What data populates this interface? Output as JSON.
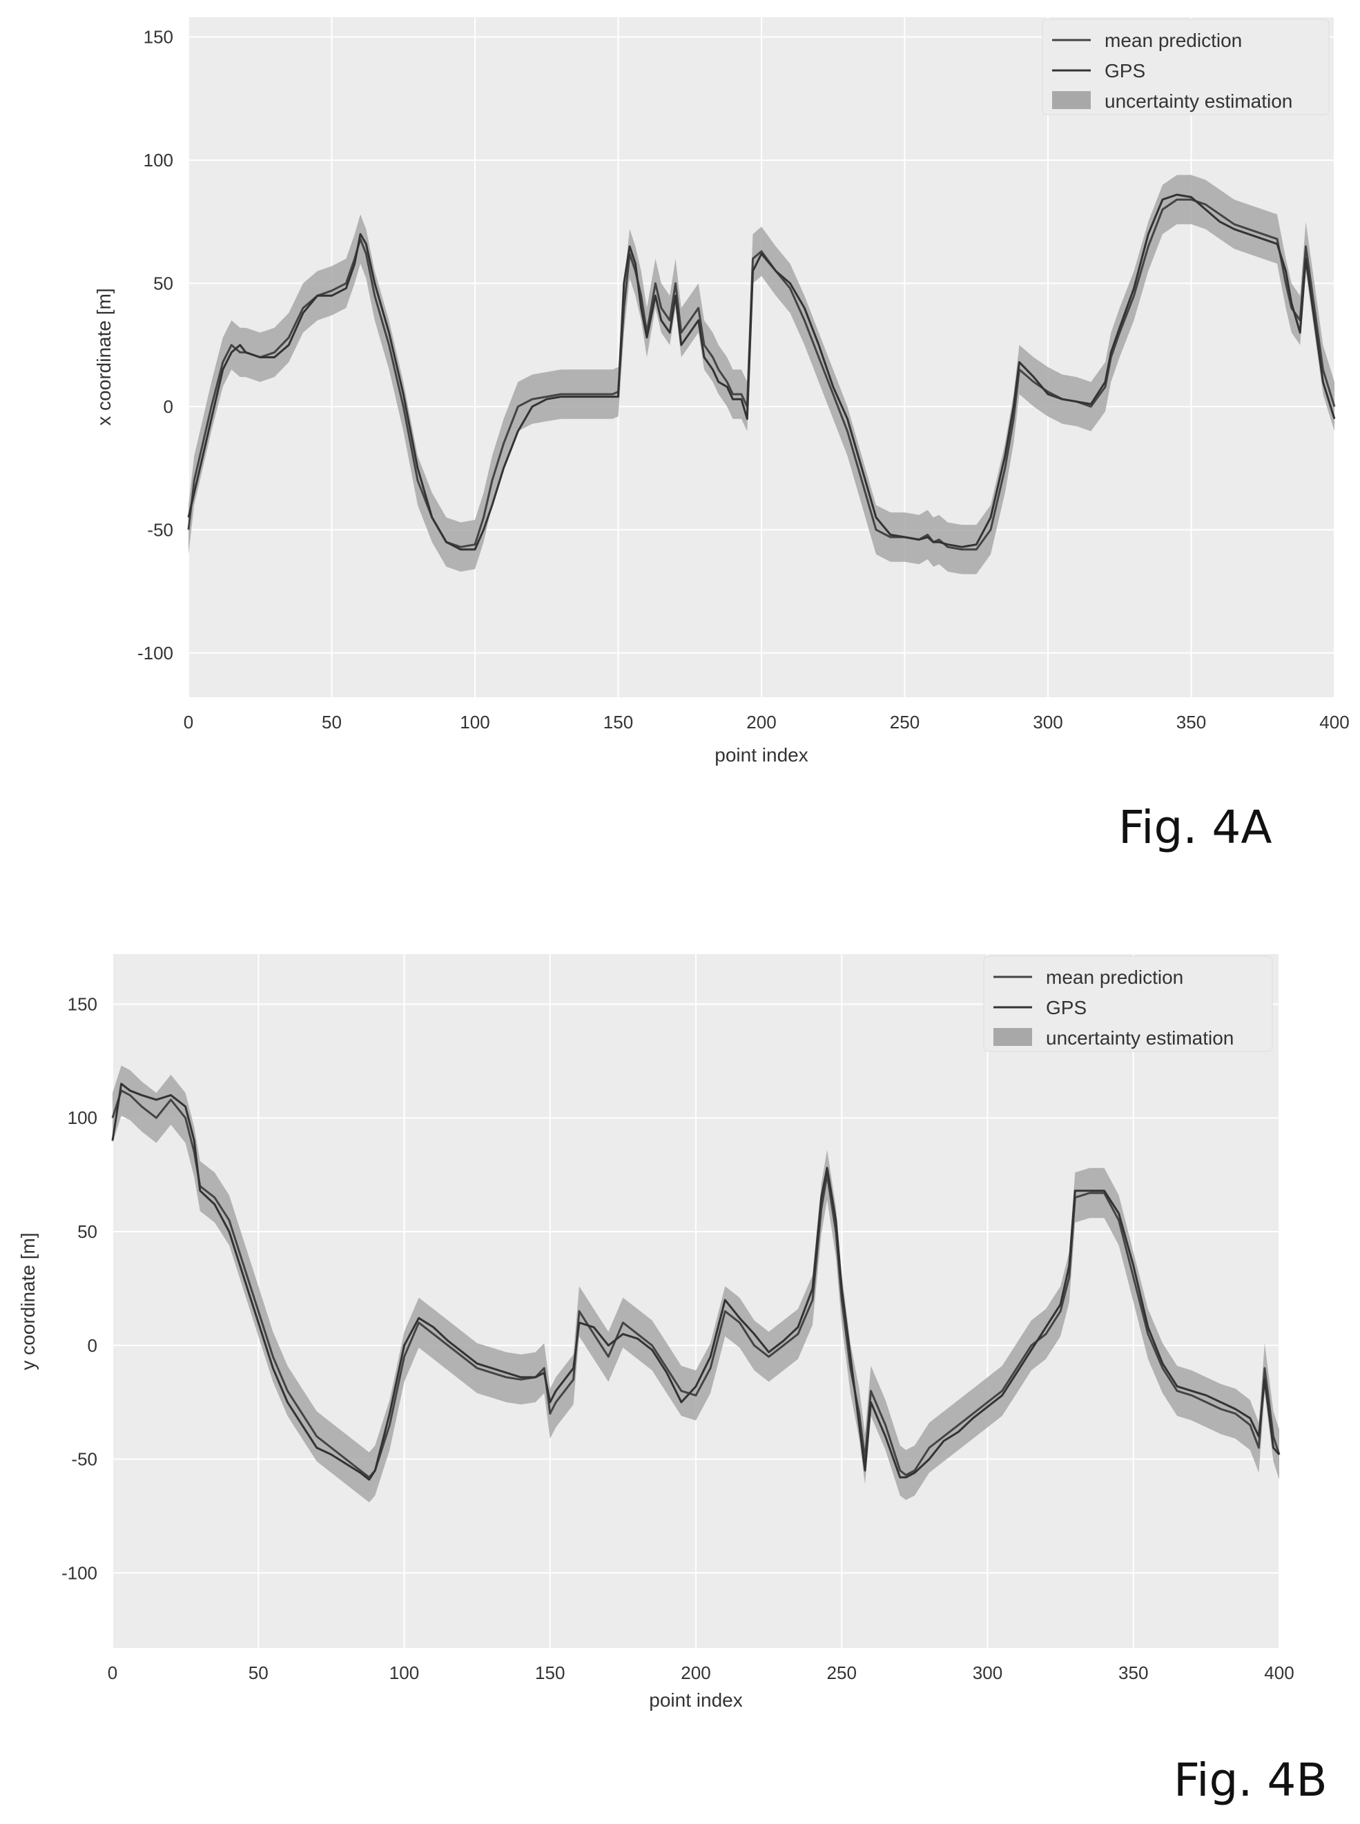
{
  "figures": [
    {
      "caption": "Fig. 4A",
      "chart_data": {
        "type": "line",
        "title": "",
        "xlabel": "point index",
        "ylabel": "x coordinate [m]",
        "xlim": [
          0,
          400
        ],
        "ylim": [
          -118,
          158
        ],
        "xticks": [
          0,
          50,
          100,
          150,
          200,
          250,
          300,
          350,
          400
        ],
        "yticks": [
          -100,
          -50,
          0,
          50,
          100,
          150
        ],
        "grid": true,
        "legend_position": "top-right",
        "legend": [
          "mean prediction",
          "GPS",
          "uncertainty estimation"
        ],
        "x": [
          0,
          2,
          5,
          8,
          12,
          15,
          18,
          20,
          25,
          30,
          35,
          40,
          45,
          50,
          55,
          58,
          60,
          62,
          65,
          70,
          75,
          80,
          85,
          90,
          95,
          100,
          103,
          106,
          110,
          115,
          120,
          125,
          130,
          135,
          140,
          145,
          148,
          150,
          152,
          154,
          156,
          158,
          160,
          163,
          165,
          168,
          170,
          172,
          175,
          178,
          180,
          183,
          185,
          188,
          190,
          193,
          195,
          197,
          200,
          205,
          210,
          215,
          220,
          225,
          230,
          235,
          240,
          245,
          250,
          255,
          258,
          260,
          262,
          265,
          270,
          275,
          280,
          285,
          288,
          290,
          295,
          300,
          305,
          310,
          315,
          320,
          322,
          325,
          330,
          335,
          340,
          345,
          350,
          355,
          360,
          365,
          370,
          375,
          380,
          383,
          385,
          388,
          390,
          393,
          396,
          400
        ],
        "series": [
          {
            "name": "mean prediction",
            "values": [
              -50,
              -30,
              -15,
              0,
              18,
              25,
              22,
              22,
              20,
              22,
              28,
              40,
              45,
              47,
              50,
              60,
              68,
              62,
              45,
              25,
              0,
              -30,
              -45,
              -55,
              -57,
              -56,
              -45,
              -30,
              -15,
              0,
              3,
              4,
              5,
              5,
              5,
              5,
              5,
              6,
              40,
              62,
              55,
              45,
              30,
              50,
              40,
              35,
              50,
              30,
              35,
              40,
              25,
              20,
              15,
              10,
              5,
              5,
              0,
              60,
              63,
              55,
              48,
              35,
              20,
              5,
              -10,
              -30,
              -50,
              -53,
              -53,
              -54,
              -52,
              -55,
              -54,
              -57,
              -58,
              -58,
              -50,
              -25,
              -5,
              15,
              10,
              6,
              3,
              2,
              0,
              8,
              20,
              30,
              45,
              65,
              80,
              84,
              84,
              82,
              78,
              74,
              72,
              70,
              68,
              50,
              40,
              35,
              65,
              40,
              15,
              0
            ],
            "color": "#444444"
          },
          {
            "name": "GPS",
            "values": [
              -45,
              -35,
              -20,
              -5,
              15,
              22,
              25,
              22,
              20,
              20,
              25,
              38,
              45,
              45,
              48,
              58,
              70,
              66,
              50,
              30,
              5,
              -25,
              -45,
              -55,
              -58,
              -58,
              -50,
              -40,
              -25,
              -10,
              0,
              3,
              4,
              4,
              4,
              4,
              4,
              4,
              50,
              65,
              58,
              40,
              28,
              45,
              35,
              30,
              45,
              25,
              30,
              35,
              20,
              15,
              10,
              8,
              3,
              3,
              -5,
              55,
              62,
              55,
              50,
              40,
              25,
              8,
              -5,
              -25,
              -45,
              -52,
              -53,
              -54,
              -53,
              -55,
              -55,
              -56,
              -57,
              -56,
              -45,
              -20,
              0,
              18,
              12,
              5,
              3,
              2,
              1,
              10,
              22,
              32,
              48,
              70,
              84,
              86,
              85,
              80,
              75,
              72,
              70,
              68,
              66,
              55,
              42,
              30,
              60,
              35,
              10,
              -5
            ],
            "color": "#333333"
          }
        ],
        "uncertainty": {
          "name": "uncertainty estimation",
          "halfwidth": 10,
          "color": "#a8a8a8"
        }
      }
    },
    {
      "caption": "Fig. 4B",
      "chart_data": {
        "type": "line",
        "title": "",
        "xlabel": "point index",
        "ylabel": "y coordinate [m]",
        "xlim": [
          0,
          400
        ],
        "ylim": [
          -133,
          172
        ],
        "xticks": [
          0,
          50,
          100,
          150,
          200,
          250,
          300,
          350,
          400
        ],
        "yticks": [
          -100,
          -50,
          0,
          50,
          100,
          150
        ],
        "grid": true,
        "legend_position": "top-right",
        "legend": [
          "mean prediction",
          "GPS",
          "uncertainty estimation"
        ],
        "x": [
          0,
          3,
          6,
          10,
          15,
          20,
          25,
          28,
          30,
          35,
          40,
          45,
          50,
          55,
          60,
          65,
          70,
          75,
          80,
          85,
          88,
          90,
          95,
          100,
          105,
          110,
          115,
          120,
          125,
          130,
          135,
          140,
          145,
          148,
          150,
          152,
          155,
          158,
          160,
          165,
          170,
          175,
          180,
          185,
          190,
          195,
          200,
          205,
          210,
          215,
          220,
          225,
          230,
          235,
          240,
          243,
          245,
          248,
          250,
          253,
          256,
          258,
          260,
          265,
          270,
          272,
          275,
          280,
          285,
          290,
          295,
          300,
          305,
          310,
          315,
          320,
          325,
          328,
          330,
          335,
          340,
          345,
          350,
          355,
          360,
          365,
          370,
          375,
          380,
          385,
          390,
          393,
          395,
          398,
          400
        ],
        "series": [
          {
            "name": "mean prediction",
            "values": [
              100,
              112,
              110,
              105,
              100,
              108,
              100,
              85,
              70,
              65,
              55,
              35,
              15,
              -5,
              -20,
              -30,
              -40,
              -45,
              -50,
              -55,
              -58,
              -55,
              -35,
              -5,
              10,
              5,
              0,
              -5,
              -10,
              -12,
              -14,
              -15,
              -14,
              -10,
              -30,
              -25,
              -20,
              -15,
              15,
              5,
              -5,
              10,
              5,
              0,
              -10,
              -20,
              -22,
              -10,
              15,
              10,
              0,
              -5,
              0,
              5,
              20,
              60,
              75,
              50,
              20,
              -10,
              -30,
              -50,
              -20,
              -35,
              -55,
              -57,
              -55,
              -45,
              -40,
              -35,
              -30,
              -25,
              -20,
              -10,
              0,
              5,
              15,
              30,
              65,
              67,
              67,
              55,
              30,
              5,
              -10,
              -20,
              -22,
              -25,
              -28,
              -30,
              -35,
              -45,
              -10,
              -40,
              -48
            ],
            "color": "#444444"
          },
          {
            "name": "GPS",
            "values": [
              90,
              115,
              112,
              110,
              108,
              110,
              105,
              90,
              68,
              62,
              50,
              30,
              10,
              -10,
              -25,
              -35,
              -45,
              -48,
              -52,
              -56,
              -59,
              -55,
              -30,
              0,
              12,
              8,
              2,
              -3,
              -8,
              -10,
              -12,
              -14,
              -14,
              -12,
              -25,
              -20,
              -15,
              -10,
              10,
              8,
              0,
              5,
              3,
              -2,
              -12,
              -25,
              -18,
              -5,
              20,
              12,
              5,
              -3,
              2,
              8,
              25,
              65,
              78,
              55,
              25,
              -5,
              -35,
              -55,
              -25,
              -40,
              -58,
              -58,
              -56,
              -50,
              -42,
              -38,
              -32,
              -27,
              -22,
              -12,
              -2,
              8,
              18,
              35,
              68,
              68,
              68,
              58,
              35,
              8,
              -8,
              -18,
              -20,
              -22,
              -25,
              -28,
              -32,
              -40,
              -15,
              -45,
              -48
            ],
            "color": "#333333"
          }
        ],
        "uncertainty": {
          "name": "uncertainty estimation",
          "halfwidth": 11,
          "color": "#a8a8a8"
        }
      }
    }
  ]
}
